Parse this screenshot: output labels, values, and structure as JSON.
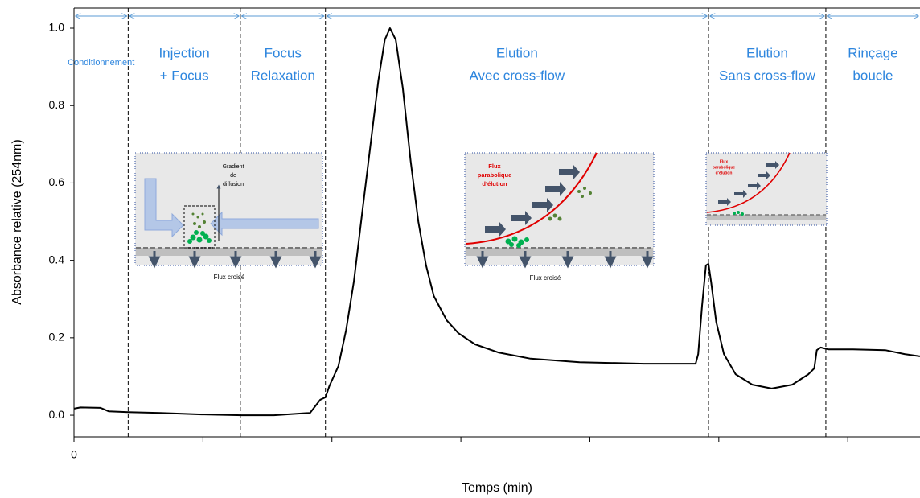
{
  "chart_data": {
    "type": "line",
    "xlabel": "Temps (min)",
    "ylabel": "Absorbance relative (254nm)",
    "xlim": [
      0,
      65.6
    ],
    "ylim": [
      -0.056,
      1.052
    ],
    "xticks": [
      0
    ],
    "xminor": [
      10,
      20,
      30,
      40,
      50,
      60
    ],
    "yticks": [
      {
        "value": 0,
        "label": "0.0"
      },
      {
        "value": 0.2,
        "label": "0.2"
      },
      {
        "value": 0.4,
        "label": "0.4"
      },
      {
        "value": 0.6,
        "label": "0.6"
      },
      {
        "value": 0.8,
        "label": "0.8"
      },
      {
        "value": 1.0,
        "label": "1.0"
      }
    ],
    "color": "#000000",
    "x": [
      0,
      0.5,
      2.06,
      2.7,
      4.2,
      6.7,
      9.9,
      13.0,
      15.5,
      18.3,
      18.7,
      19.1,
      19.5,
      19.8,
      20.5,
      21.1,
      21.7,
      22.3,
      23.0,
      23.6,
      24.1,
      24.5,
      24.95,
      25.5,
      26.1,
      26.7,
      27.3,
      27.9,
      28.9,
      29.8,
      31.1,
      32.9,
      35.4,
      39.2,
      44.2,
      48.2,
      48.4,
      48.7,
      49.0,
      49.2,
      49.4,
      49.8,
      50.4,
      51.3,
      52.6,
      54.1,
      55.7,
      56.95,
      57.4,
      57.6,
      57.9,
      58.5,
      60.4,
      62.9,
      64.4,
      65.6
    ],
    "values": [
      0.017,
      0.02,
      0.019,
      0.01,
      0.008,
      0.006,
      0.002,
      0,
      0,
      0.006,
      0.023,
      0.04,
      0.046,
      0.075,
      0.127,
      0.22,
      0.345,
      0.51,
      0.7,
      0.865,
      0.97,
      1.0,
      0.97,
      0.845,
      0.657,
      0.5,
      0.387,
      0.308,
      0.245,
      0.212,
      0.183,
      0.162,
      0.146,
      0.137,
      0.133,
      0.133,
      0.158,
      0.283,
      0.387,
      0.391,
      0.345,
      0.241,
      0.158,
      0.106,
      0.079,
      0.069,
      0.079,
      0.106,
      0.121,
      0.168,
      0.175,
      0.17,
      0.17,
      0.168,
      0.158,
      0.152
    ],
    "phase_boundaries": [
      4.2,
      12.9,
      19.5,
      49.2,
      58.3
    ],
    "phases": [
      [
        "Conditionnement"
      ],
      [
        "Injection",
        "+ Focus"
      ],
      [
        "Focus",
        "Relaxation"
      ],
      [
        "Elution",
        "Avec cross-flow"
      ],
      [
        "Elution",
        "Sans cross-flow"
      ],
      [
        "Rinçage",
        "boucle"
      ]
    ]
  },
  "insets": [
    {
      "texts": [
        "Gradient",
        "de",
        "diffusion"
      ],
      "caption": "Flux croisé"
    },
    {
      "texts": [
        "Flux",
        "parabolique",
        "d’élution"
      ],
      "caption": "Flux croisé"
    },
    {
      "texts": [
        "Flux",
        "parabolique",
        "d’élution"
      ]
    }
  ]
}
